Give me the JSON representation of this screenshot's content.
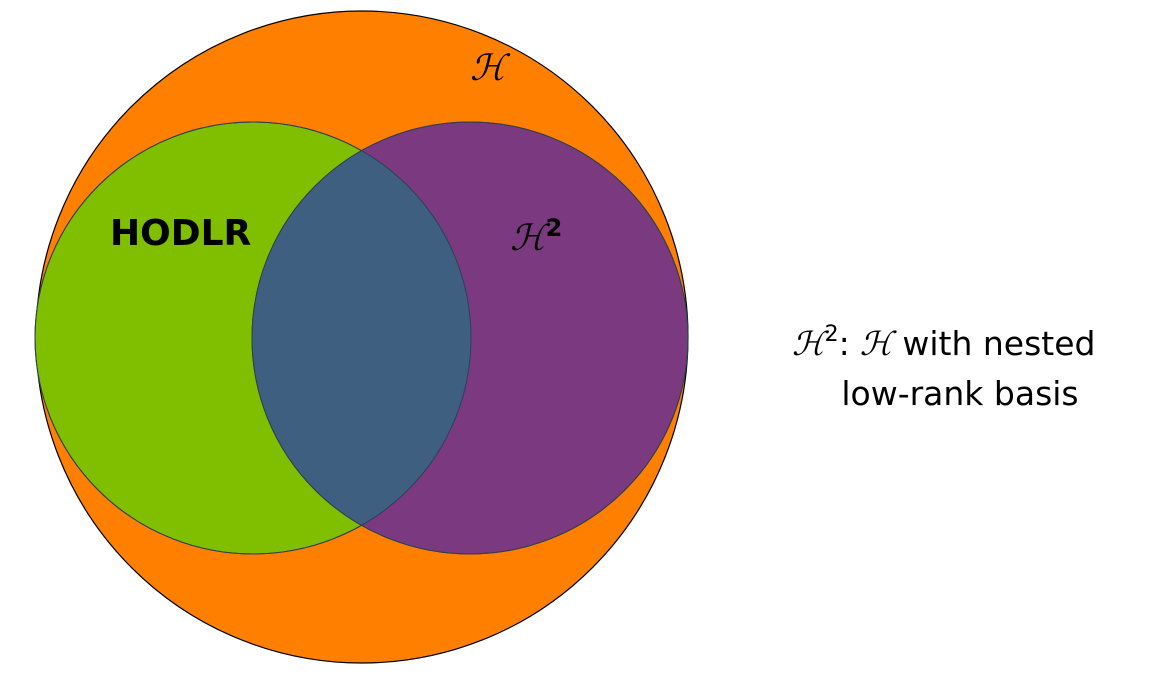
{
  "diagram": {
    "sets": [
      {
        "id": "H",
        "label": "ℋ",
        "color": "#ff8000"
      },
      {
        "id": "HODLR",
        "label": "HODLR",
        "color": "#80bf00"
      },
      {
        "id": "H2",
        "label_base": "ℋ",
        "label_sup": "2",
        "color": "#7b3a80"
      }
    ],
    "intersection_color": "#3e5f80"
  },
  "caption": {
    "line1_symbol": "ℋ",
    "line1_sup": "2",
    "line1_colon": ":",
    "line1_symbol2": "ℋ",
    "line1_rest": "with nested",
    "line2": "low-rank basis"
  }
}
